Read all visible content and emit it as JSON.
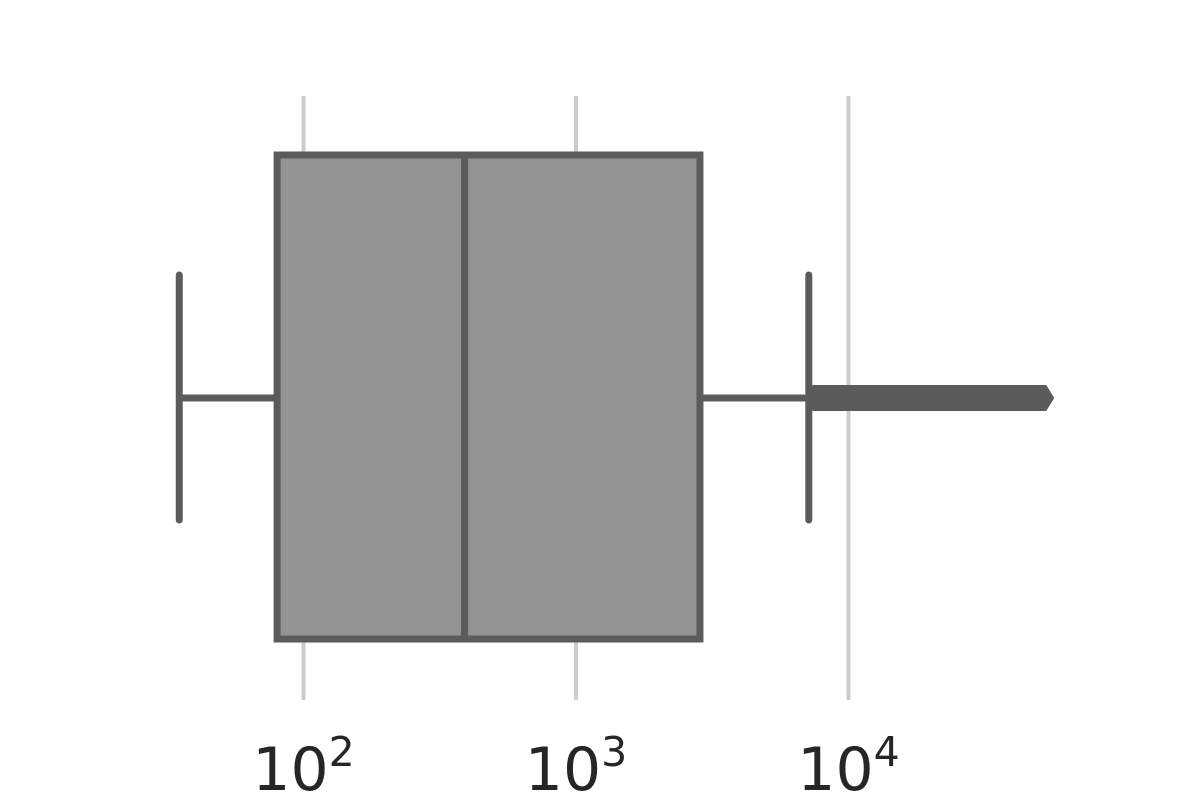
{
  "chart_data": {
    "type": "box",
    "orientation": "horizontal",
    "x_scale": "log",
    "xlim": [
      30,
      70000
    ],
    "grid": {
      "x": true,
      "y": false
    },
    "colors": {
      "box_fill": "#939393",
      "line": "#5b5b5b",
      "grid": "#cccccc",
      "text": "#262626"
    },
    "ticks": [
      {
        "value": 100,
        "base": "10",
        "exponent": "2"
      },
      {
        "value": 1000,
        "base": "10",
        "exponent": "3"
      },
      {
        "value": 10000,
        "base": "10",
        "exponent": "4"
      }
    ],
    "box": {
      "whisker_low": 35,
      "q1": 80,
      "median": 390,
      "q3": 2850,
      "whisker_high": 7150,
      "outliers_min": 7150,
      "outliers_max": 55000
    }
  }
}
